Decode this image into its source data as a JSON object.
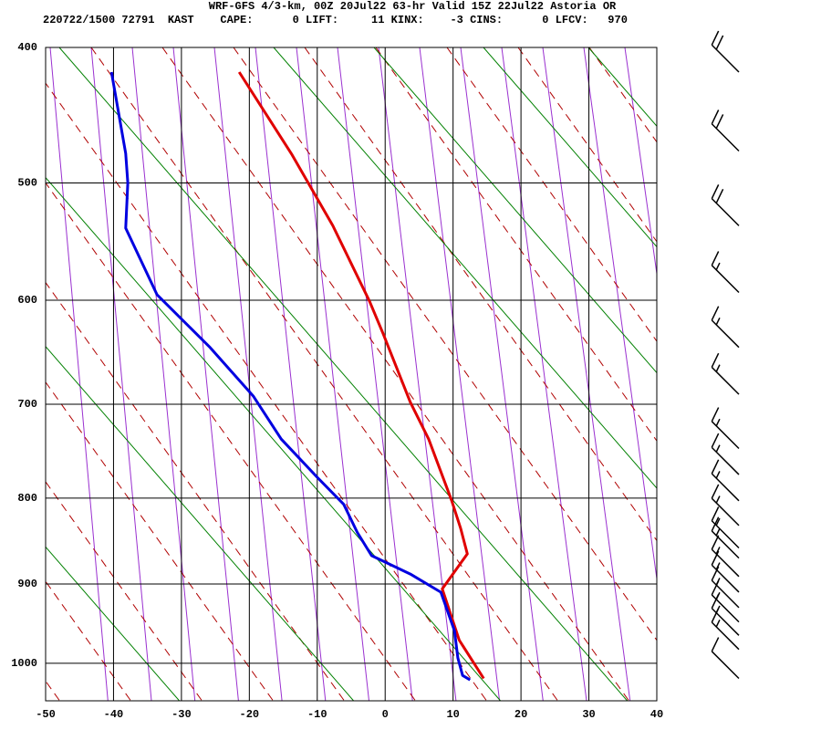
{
  "chart_data": {
    "type": "skewt",
    "title": "WRF-GFS 4/3-km, 00Z 20Jul22 63-hr Valid 15Z 22Jul22 Astoria OR",
    "subtitle": "220722/1500 72791  KAST    CAPE:      0 LIFT:     11 KINX:    -3 CINS:      0 LFCV:   970",
    "xlim": [
      -50,
      40
    ],
    "xticks": [
      -50,
      -40,
      -30,
      -20,
      -10,
      0,
      10,
      20,
      30,
      40
    ],
    "ylim": [
      400,
      1050
    ],
    "yticks": [
      400,
      500,
      600,
      700,
      800,
      900,
      1000
    ],
    "y_exponent": 0.286,
    "grid": true,
    "series": [
      {
        "color": "#e00000",
        "x": [
          -21.5,
          -13.7,
          -7.7,
          -2.3,
          -0.3,
          3.7,
          6.4,
          9.8,
          11.1,
          12.1,
          8.4,
          10.9,
          14.5
        ],
        "values": [
          417,
          478,
          535,
          601,
          631,
          698,
          736,
          803,
          834,
          864,
          906,
          970,
          1020
        ]
      },
      {
        "color": "#0000e0",
        "x": [
          -40.3,
          -38.2,
          -37.9,
          -38.2,
          -33.6,
          -25.8,
          -19.4,
          -15.3,
          -10.0,
          -6.1,
          -4.1,
          -2.0,
          3.7,
          8.2,
          10.2,
          10.7,
          11.4,
          12.5
        ],
        "values": [
          417,
          477,
          500,
          537,
          595,
          644,
          692,
          736,
          777,
          807,
          839,
          866,
          888,
          910,
          958,
          993,
          1016,
          1022
        ]
      }
    ],
    "wind": {
      "pressure": [
        417,
        475,
        535,
        593,
        644,
        690,
        746,
        774,
        803,
        831,
        857,
        869,
        891,
        910,
        929,
        947,
        964,
        982,
        1020
      ],
      "speed": [
        20,
        20,
        20,
        15,
        15,
        15,
        15,
        15,
        15,
        15,
        15,
        15,
        15,
        15,
        15,
        15,
        15,
        15,
        10
      ],
      "direction": [
        315,
        315,
        315,
        315,
        315,
        315,
        315,
        315,
        315,
        315,
        315,
        315,
        315,
        315,
        315,
        315,
        315,
        315,
        315
      ]
    }
  }
}
